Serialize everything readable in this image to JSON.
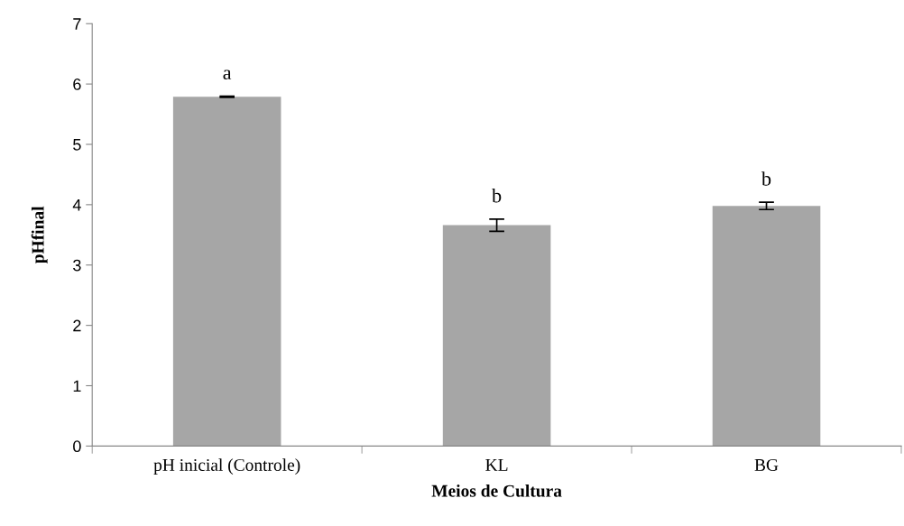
{
  "chart_data": {
    "type": "bar",
    "xlabel": "Meios de Cultura",
    "ylabel": "pHfinal",
    "categories": [
      "pH inicial (Controle)",
      "KL",
      "BG"
    ],
    "values": [
      5.79,
      3.66,
      3.98
    ],
    "errors": [
      0.01,
      0.1,
      0.06
    ],
    "color": "#a6a6a6",
    "ylim": [
      0,
      7
    ],
    "yticks": [
      0,
      1,
      2,
      3,
      4,
      5,
      6,
      7
    ],
    "grid": false,
    "legend": false,
    "annotations": [
      "a",
      "b",
      "b"
    ]
  }
}
